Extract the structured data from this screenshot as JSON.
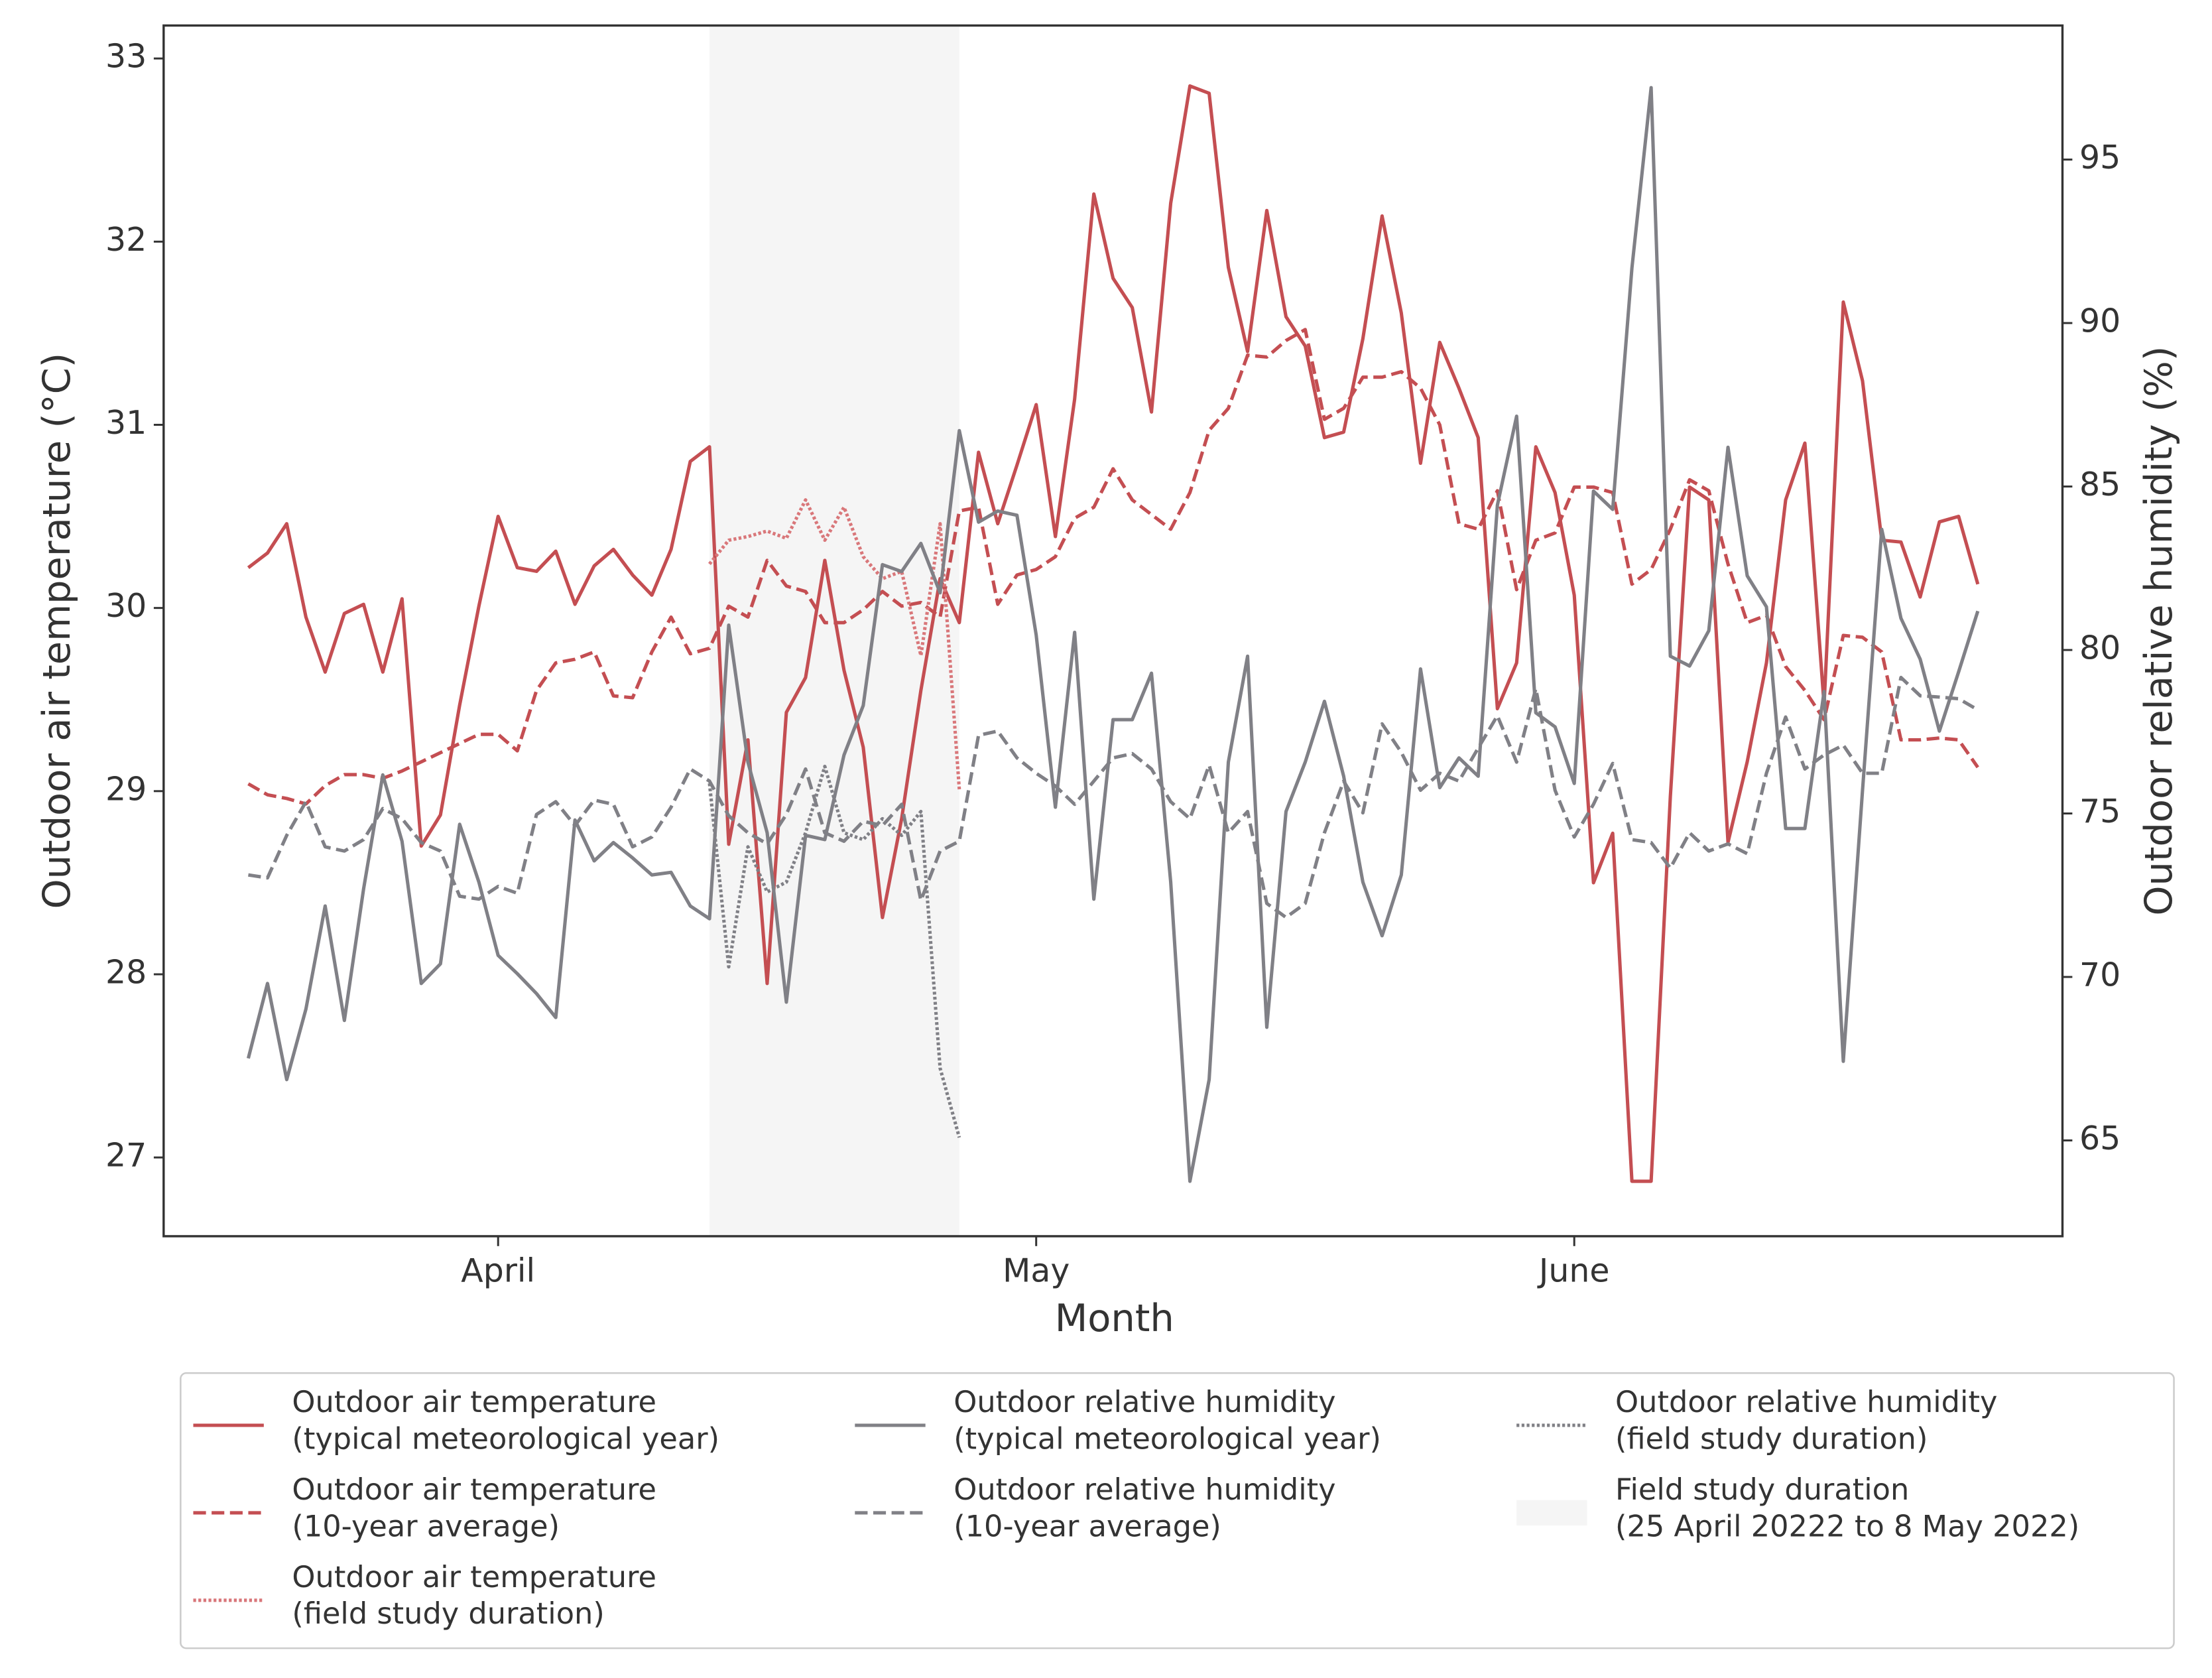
{
  "chart_data": {
    "type": "line",
    "xlabel": "Month",
    "ylabel": "Outdoor air temperature (°C)",
    "y2label": "Outdoor relative humidity (%)",
    "categories": [
      null,
      null,
      null,
      null,
      null,
      null,
      null,
      null,
      null,
      null,
      null,
      null,
      null,
      "April",
      null,
      null,
      null,
      null,
      null,
      null,
      null,
      null,
      null,
      null,
      null,
      null,
      null,
      null,
      null,
      null,
      null,
      null,
      null,
      null,
      null,
      null,
      null,
      null,
      null,
      null,
      null,
      "May",
      null,
      null,
      null,
      null,
      null,
      null,
      null,
      null,
      null,
      null,
      null,
      null,
      null,
      null,
      null,
      null,
      null,
      null,
      null,
      null,
      null,
      null,
      null,
      null,
      null,
      null,
      null,
      "June",
      null,
      null,
      null,
      null,
      null,
      null,
      null,
      null,
      null,
      null,
      null,
      null,
      null,
      null,
      null,
      null,
      null,
      null,
      null,
      null,
      null
    ],
    "ylim": [
      26.57,
      33.18
    ],
    "yticks": [
      27,
      28,
      29,
      30,
      31,
      32,
      33
    ],
    "y2lim": [
      62.07,
      99.1
    ],
    "y2ticks": [
      65,
      70,
      75,
      80,
      85,
      90,
      95
    ],
    "grid": false,
    "legend": "below",
    "series": [
      {
        "name": "Outdoor air temperature\n(typical meteorological year)",
        "color": "#c44e52",
        "style": "solid",
        "axis": "y",
        "values": [
          30.22,
          30.3,
          30.46,
          29.95,
          29.65,
          29.97,
          30.02,
          29.65,
          30.05,
          28.7,
          28.87,
          29.47,
          30.01,
          30.5,
          30.22,
          30.2,
          30.31,
          30.02,
          30.23,
          30.32,
          30.18,
          30.07,
          30.32,
          30.8,
          30.88,
          28.71,
          29.28,
          27.95,
          29.43,
          29.62,
          30.26,
          29.66,
          29.24,
          28.31,
          28.85,
          29.55,
          30.16,
          29.92,
          30.85,
          30.46,
          30.78,
          31.11,
          30.39,
          31.14,
          32.26,
          31.8,
          31.64,
          31.07,
          32.21,
          32.85,
          32.81,
          31.86,
          31.4,
          32.17,
          31.59,
          31.43,
          30.93,
          30.96,
          31.47,
          32.14,
          31.61,
          30.79,
          31.45,
          31.2,
          30.93,
          29.45,
          29.7,
          30.88,
          30.63,
          30.07,
          28.5,
          28.77,
          26.87,
          26.87,
          28.97,
          30.66,
          30.59,
          28.72,
          29.16,
          29.7,
          30.59,
          30.9,
          29.47,
          31.67,
          31.24,
          30.37,
          30.36,
          30.06,
          30.47,
          30.5,
          30.13
        ]
      },
      {
        "name": "Outdoor air temperature\n(10-year average)",
        "color": "#c44e52",
        "style": "dashed",
        "axis": "y",
        "values": [
          29.04,
          28.98,
          28.96,
          28.93,
          29.03,
          29.09,
          29.09,
          29.07,
          29.11,
          29.16,
          29.21,
          29.26,
          29.31,
          29.31,
          29.22,
          29.55,
          29.7,
          29.72,
          29.76,
          29.52,
          29.51,
          29.76,
          29.95,
          29.75,
          29.78,
          30.01,
          29.95,
          30.26,
          30.12,
          30.09,
          29.92,
          29.92,
          29.99,
          30.09,
          30.01,
          30.03,
          29.95,
          30.53,
          30.55,
          30.02,
          30.18,
          30.21,
          30.28,
          30.49,
          30.55,
          30.76,
          30.59,
          30.51,
          30.43,
          30.63,
          30.97,
          31.09,
          31.38,
          31.37,
          31.46,
          31.52,
          31.03,
          31.09,
          31.26,
          31.26,
          31.29,
          31.2,
          31.0,
          30.46,
          30.43,
          30.64,
          30.1,
          30.37,
          30.41,
          30.66,
          30.66,
          30.63,
          30.13,
          30.21,
          30.43,
          30.7,
          30.64,
          30.24,
          29.92,
          29.96,
          29.68,
          29.55,
          29.39,
          29.85,
          29.84,
          29.76,
          29.28,
          29.28,
          29.29,
          29.28,
          29.13
        ]
      },
      {
        "name": "Outdoor air temperature\n(field study duration)",
        "color": "#d9777a",
        "style": "dotted",
        "axis": "y",
        "values": [
          null,
          null,
          null,
          null,
          null,
          null,
          null,
          null,
          null,
          null,
          null,
          null,
          null,
          null,
          null,
          null,
          null,
          null,
          null,
          null,
          null,
          null,
          null,
          null,
          30.24,
          30.37,
          30.39,
          30.42,
          30.38,
          30.59,
          30.37,
          30.55,
          30.28,
          30.16,
          30.2,
          29.74,
          30.46,
          29.01,
          null,
          null,
          null,
          null,
          null,
          null,
          null,
          null,
          null,
          null,
          null,
          null,
          null,
          null,
          null,
          null,
          null,
          null,
          null,
          null,
          null,
          null,
          null,
          null,
          null,
          null,
          null,
          null,
          null,
          null,
          null,
          null,
          null,
          null,
          null,
          null,
          null,
          null,
          null,
          null,
          null,
          null,
          null,
          null,
          null,
          null,
          null,
          null,
          null,
          null,
          null,
          null,
          null
        ]
      },
      {
        "name": "Outdoor relative humidity\n(typical meteorological year)",
        "color": "#808086",
        "style": "solid",
        "axis": "y2",
        "values": [
          67.51,
          69.8,
          66.86,
          69.02,
          72.17,
          68.67,
          72.69,
          76.18,
          74.15,
          69.8,
          70.4,
          74.67,
          72.9,
          70.66,
          70.1,
          69.49,
          68.76,
          74.8,
          73.55,
          74.11,
          73.64,
          73.12,
          73.2,
          72.17,
          71.78,
          80.76,
          76.57,
          74.41,
          69.23,
          74.33,
          74.2,
          76.79,
          78.3,
          82.61,
          82.4,
          83.26,
          81.75,
          86.71,
          83.91,
          84.25,
          84.12,
          80.46,
          75.19,
          80.54,
          72.38,
          77.87,
          77.87,
          79.29,
          72.9,
          63.75,
          66.86,
          76.57,
          79.81,
          68.46,
          75.06,
          76.57,
          78.43,
          76.14,
          72.9,
          71.26,
          73.12,
          79.42,
          75.79,
          76.7,
          76.14,
          84.43,
          87.15,
          78.08,
          77.65,
          75.92,
          84.86,
          84.3,
          91.68,
          97.2,
          79.81,
          79.51,
          80.59,
          86.2,
          82.27,
          81.32,
          74.54,
          74.54,
          78.73,
          67.42,
          75.71,
          83.69,
          80.97,
          79.72,
          77.52,
          79.33,
          81.19
        ]
      },
      {
        "name": "Outdoor relative humidity\n(10-year average)",
        "color": "#808086",
        "style": "dashed",
        "axis": "y2",
        "values": [
          73.12,
          73.03,
          74.33,
          75.36,
          73.98,
          73.85,
          74.2,
          75.15,
          74.84,
          74.11,
          73.85,
          72.47,
          72.38,
          72.77,
          72.56,
          74.97,
          75.36,
          74.63,
          75.41,
          75.28,
          73.98,
          74.28,
          75.19,
          76.36,
          75.99,
          74.93,
          74.41,
          74.07,
          74.97,
          76.36,
          74.41,
          74.15,
          74.76,
          74.63,
          75.28,
          72.34,
          73.85,
          74.15,
          77.39,
          77.52,
          76.7,
          76.23,
          75.84,
          75.28,
          75.99,
          76.7,
          76.83,
          76.36,
          75.36,
          74.84,
          76.48,
          74.41,
          75.06,
          72.25,
          71.82,
          72.25,
          74.41,
          75.99,
          75.02,
          77.74,
          76.87,
          75.71,
          76.23,
          75.99,
          77.0,
          77.99,
          76.57,
          78.82,
          75.71,
          74.28,
          75.28,
          76.53,
          74.2,
          74.11,
          73.33,
          74.41,
          73.85,
          74.07,
          73.77,
          76.23,
          77.95,
          76.36,
          76.79,
          77.09,
          76.23,
          76.23,
          79.16,
          78.6,
          78.56,
          78.51,
          78.17
        ]
      },
      {
        "name": "Outdoor relative humidity\n(field study duration)",
        "color": "#808086",
        "style": "dotted",
        "axis": "y2",
        "values": [
          null,
          null,
          null,
          null,
          null,
          null,
          null,
          null,
          null,
          null,
          null,
          null,
          null,
          null,
          null,
          null,
          null,
          null,
          null,
          null,
          null,
          null,
          null,
          null,
          75.92,
          70.31,
          73.98,
          72.6,
          72.9,
          74.41,
          76.44,
          74.41,
          74.2,
          74.84,
          74.33,
          75.06,
          67.21,
          65.09,
          null,
          null,
          null,
          null,
          null,
          null,
          null,
          null,
          null,
          null,
          null,
          null,
          null,
          null,
          null,
          null,
          null,
          null,
          null,
          null,
          null,
          null,
          null,
          null,
          null,
          null,
          null,
          null,
          null,
          null,
          null,
          null,
          null,
          null,
          null,
          null,
          null,
          null,
          null,
          null,
          null,
          null,
          null,
          null,
          null,
          null,
          null,
          null,
          null,
          null,
          null,
          null,
          null
        ]
      }
    ],
    "shade": {
      "name": "Field study duration\n(25 April 20222 to 8 May 2022)",
      "color": "#f5f5f5",
      "span": [
        24,
        37
      ]
    }
  }
}
